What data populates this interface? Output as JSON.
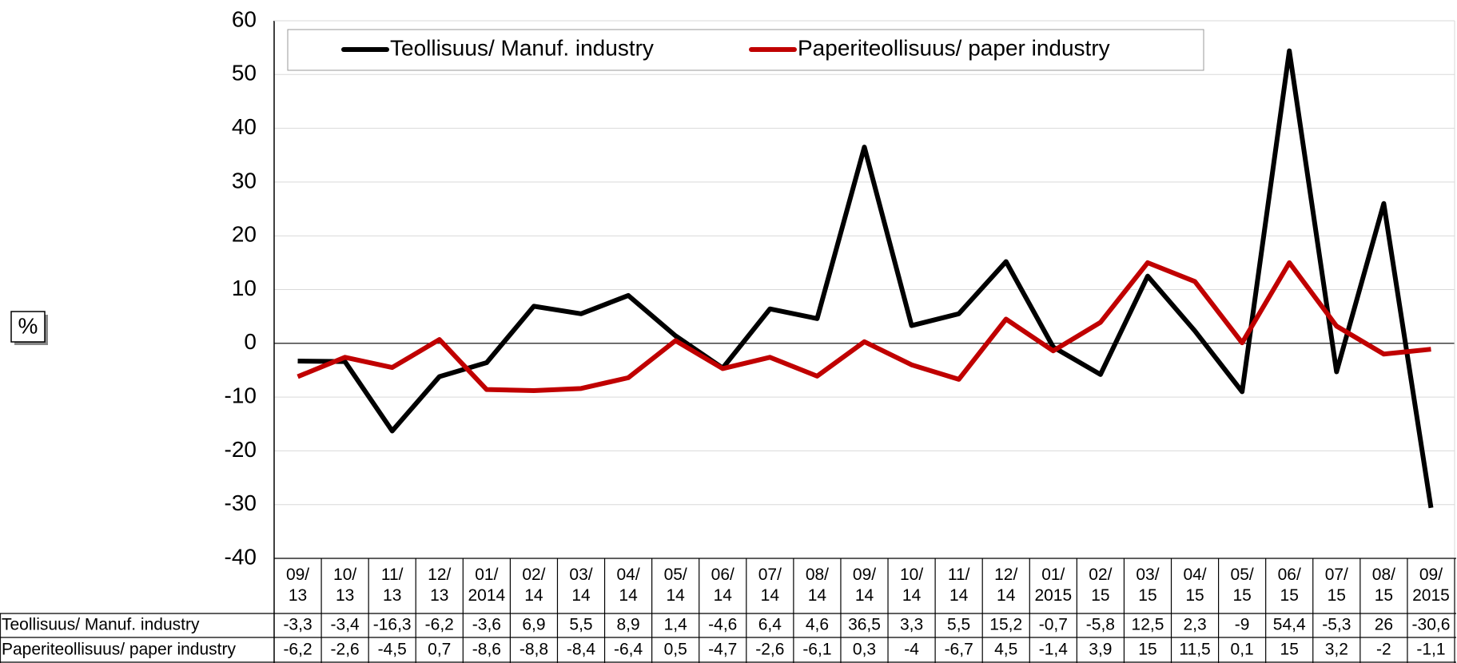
{
  "chart_data": {
    "type": "line",
    "y_label": "%",
    "categories": [
      "09/ 13",
      "10/ 13",
      "11/ 13",
      "12/ 13",
      "01/ 2014",
      "02/ 14",
      "03/ 14",
      "04/ 14",
      "05/ 14",
      "06/ 14",
      "07/ 14",
      "08/ 14",
      "09/ 14",
      "10/ 14",
      "11/ 14",
      "12/ 14",
      "01/ 2015",
      "02/ 15",
      "03/ 15",
      "04/ 15",
      "05/ 15",
      "06/ 15",
      "07/ 15",
      "08/ 15",
      "09/ 2015"
    ],
    "series": [
      {
        "name": "Teollisuus/ Manuf. industry",
        "color": "#000000",
        "values": [
          -3.3,
          -3.4,
          -16.3,
          -6.2,
          -3.6,
          6.9,
          5.5,
          8.9,
          1.4,
          -4.6,
          6.4,
          4.6,
          36.5,
          3.3,
          5.5,
          15.2,
          -0.7,
          -5.8,
          12.5,
          2.3,
          -9,
          54.4,
          -5.3,
          26,
          -30.6
        ],
        "value_labels": [
          "-3,3",
          "-3,4",
          "-16,3",
          "-6,2",
          "-3,6",
          "6,9",
          "5,5",
          "8,9",
          "1,4",
          "-4,6",
          "6,4",
          "4,6",
          "36,5",
          "3,3",
          "5,5",
          "15,2",
          "-0,7",
          "-5,8",
          "12,5",
          "2,3",
          "-9",
          "54,4",
          "-5,3",
          "26",
          "-30,6"
        ]
      },
      {
        "name": "Paperiteollisuus/ paper industry",
        "color": "#c00000",
        "values": [
          -6.2,
          -2.6,
          -4.5,
          0.7,
          -8.6,
          -8.8,
          -8.4,
          -6.4,
          0.5,
          -4.7,
          -2.6,
          -6.1,
          0.3,
          -4,
          -6.7,
          4.5,
          -1.4,
          3.9,
          15,
          11.5,
          0.1,
          15,
          3.2,
          -2,
          -1.1
        ],
        "value_labels": [
          "-6,2",
          "-2,6",
          "-4,5",
          "0,7",
          "-8,6",
          "-8,8",
          "-8,4",
          "-6,4",
          "0,5",
          "-4,7",
          "-2,6",
          "-6,1",
          "0,3",
          "-4",
          "-6,7",
          "4,5",
          "-1,4",
          "3,9",
          "15",
          "11,5",
          "0,1",
          "15",
          "3,2",
          "-2",
          "-1,1"
        ]
      }
    ],
    "ylim": [
      -40,
      60
    ],
    "yticks": [
      -40,
      -30,
      -20,
      -10,
      0,
      10,
      20,
      30,
      40,
      50,
      60
    ],
    "grid": true
  }
}
